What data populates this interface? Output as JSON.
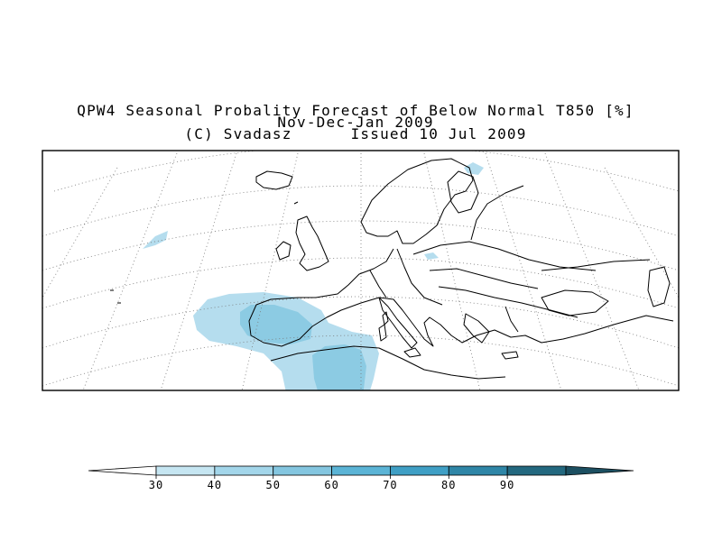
{
  "title": {
    "line1": "QPW4 Seasonal Probality Forecast of Below Normal T850 [%]",
    "line2": "Nov-Dec-Jan 2009",
    "line3": "(C) Svadasz      Issued 10 Jul 2009"
  },
  "colorbar": {
    "levels": [
      "30",
      "40",
      "50",
      "60",
      "70",
      "80",
      "90"
    ],
    "colors": [
      "#ffffff",
      "#c6e6f2",
      "#a3d6ea",
      "#84c6e0",
      "#5bb4d6",
      "#3f9fc5",
      "#2f86a7",
      "#23687f",
      "#1c4f61"
    ]
  },
  "map": {
    "region": "Europe",
    "variable": "Below Normal T850 probability"
  }
}
